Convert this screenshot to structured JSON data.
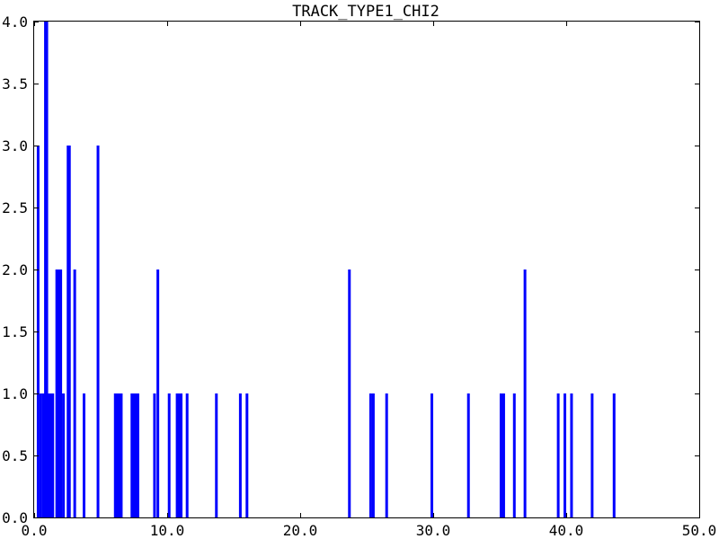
{
  "chart_data": {
    "type": "bar",
    "title": "TRACK_TYPE1_CHI2",
    "xlabel": "",
    "ylabel": "",
    "xlim": [
      0.0,
      50.0
    ],
    "ylim": [
      0.0,
      4.0
    ],
    "x_ticks": [
      "0.0",
      "10.0",
      "20.0",
      "30.0",
      "40.0",
      "50.0"
    ],
    "y_ticks": [
      "0.0",
      "0.5",
      "1.0",
      "1.5",
      "2.0",
      "2.5",
      "3.0",
      "3.5",
      "4.0"
    ],
    "grid": false,
    "legend": "none",
    "bar_color": "#0000ff",
    "bins": [
      {
        "x": 0.3,
        "y": 3
      },
      {
        "x": 0.5,
        "y": 1
      },
      {
        "x": 0.7,
        "y": 1
      },
      {
        "x": 0.85,
        "y": 4
      },
      {
        "x": 0.95,
        "y": 4
      },
      {
        "x": 1.1,
        "y": 1
      },
      {
        "x": 1.25,
        "y": 1
      },
      {
        "x": 1.4,
        "y": 1
      },
      {
        "x": 1.7,
        "y": 2
      },
      {
        "x": 1.85,
        "y": 2
      },
      {
        "x": 2.0,
        "y": 2
      },
      {
        "x": 2.2,
        "y": 1
      },
      {
        "x": 2.55,
        "y": 3
      },
      {
        "x": 2.65,
        "y": 3
      },
      {
        "x": 3.05,
        "y": 2
      },
      {
        "x": 3.75,
        "y": 1
      },
      {
        "x": 4.8,
        "y": 3
      },
      {
        "x": 6.1,
        "y": 1
      },
      {
        "x": 6.25,
        "y": 1
      },
      {
        "x": 6.4,
        "y": 1
      },
      {
        "x": 6.55,
        "y": 1
      },
      {
        "x": 7.35,
        "y": 1
      },
      {
        "x": 7.5,
        "y": 1
      },
      {
        "x": 7.65,
        "y": 1
      },
      {
        "x": 7.8,
        "y": 1
      },
      {
        "x": 9.05,
        "y": 1
      },
      {
        "x": 9.3,
        "y": 2
      },
      {
        "x": 10.15,
        "y": 1
      },
      {
        "x": 10.75,
        "y": 1
      },
      {
        "x": 10.9,
        "y": 1
      },
      {
        "x": 11.05,
        "y": 1
      },
      {
        "x": 11.5,
        "y": 1
      },
      {
        "x": 13.7,
        "y": 1
      },
      {
        "x": 15.5,
        "y": 1
      },
      {
        "x": 16.0,
        "y": 1
      },
      {
        "x": 23.7,
        "y": 2
      },
      {
        "x": 25.3,
        "y": 1
      },
      {
        "x": 25.5,
        "y": 1
      },
      {
        "x": 26.5,
        "y": 1
      },
      {
        "x": 29.9,
        "y": 1
      },
      {
        "x": 32.65,
        "y": 1
      },
      {
        "x": 35.1,
        "y": 1
      },
      {
        "x": 35.3,
        "y": 1
      },
      {
        "x": 36.1,
        "y": 1
      },
      {
        "x": 36.9,
        "y": 2
      },
      {
        "x": 39.4,
        "y": 1
      },
      {
        "x": 39.9,
        "y": 1
      },
      {
        "x": 40.4,
        "y": 1
      },
      {
        "x": 41.95,
        "y": 1
      },
      {
        "x": 43.6,
        "y": 1
      }
    ]
  }
}
